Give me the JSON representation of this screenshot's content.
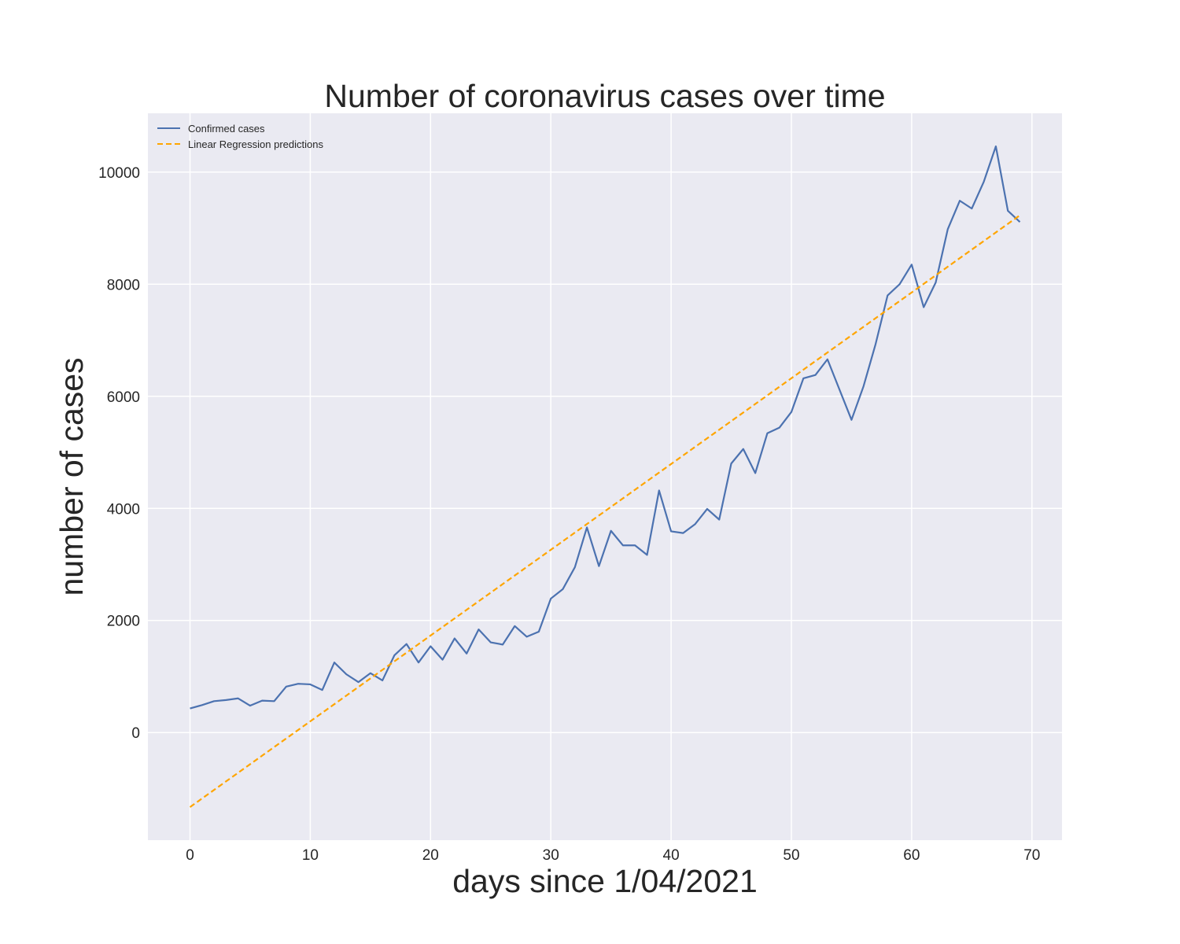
{
  "chart_data": {
    "type": "line",
    "title": "Number of coronavirus cases over time",
    "xlabel": "days since 1/04/2021",
    "ylabel": "number of cases",
    "xlim": [
      -3.5,
      72.5
    ],
    "ylim": [
      -1920,
      11050
    ],
    "xticks": [
      0,
      10,
      20,
      30,
      40,
      50,
      60,
      70
    ],
    "yticks": [
      0,
      2000,
      4000,
      6000,
      8000,
      10000
    ],
    "grid": true,
    "legend_position": "top-left",
    "background": "#eaeaf2",
    "series": [
      {
        "name": "Confirmed cases",
        "color": "#4c72b0",
        "style": "solid",
        "x": [
          0,
          1,
          2,
          3,
          4,
          5,
          6,
          7,
          8,
          9,
          10,
          11,
          12,
          13,
          14,
          15,
          16,
          17,
          18,
          19,
          20,
          21,
          22,
          23,
          24,
          25,
          26,
          27,
          28,
          29,
          30,
          31,
          32,
          33,
          34,
          35,
          36,
          37,
          38,
          39,
          40,
          41,
          42,
          43,
          44,
          45,
          46,
          47,
          48,
          49,
          50,
          51,
          52,
          53,
          54,
          55,
          56,
          57,
          58,
          59,
          60,
          61,
          62,
          63,
          64,
          65,
          66,
          67,
          68,
          69
        ],
        "values": [
          430,
          490,
          560,
          580,
          610,
          480,
          570,
          560,
          820,
          870,
          860,
          760,
          1250,
          1040,
          900,
          1060,
          930,
          1380,
          1580,
          1250,
          1540,
          1300,
          1680,
          1410,
          1840,
          1610,
          1570,
          1900,
          1710,
          1800,
          2390,
          2560,
          2950,
          3660,
          2970,
          3600,
          3340,
          3340,
          3170,
          4320,
          3590,
          3560,
          3720,
          3990,
          3800,
          4800,
          5060,
          4630,
          5340,
          5440,
          5720,
          6320,
          6380,
          6660,
          6120,
          5580,
          6180,
          6930,
          7800,
          8000,
          8350,
          7590,
          8030,
          8980,
          9490,
          9350,
          9830,
          10460,
          9310,
          9110
        ]
      },
      {
        "name": "Linear Regression predictions",
        "color": "#ffa500",
        "style": "dashed",
        "x": [
          0,
          69
        ],
        "values": [
          -1330,
          9230
        ]
      }
    ]
  }
}
